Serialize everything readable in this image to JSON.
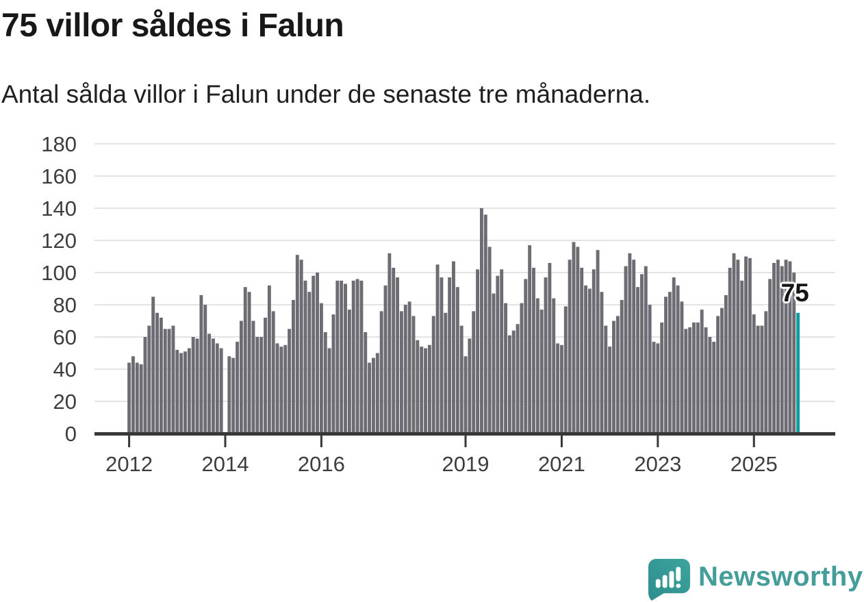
{
  "header": {
    "title": "75 villor såldes i Falun",
    "subtitle": "Antal sålda villor i Falun under de senaste tre månaderna."
  },
  "chart_data": {
    "type": "bar",
    "title": "75 villor såldes i Falun",
    "subtitle": "Antal sålda villor i Falun under de senaste tre månaderna.",
    "unit": "sålda villor (rullande 3 månader)",
    "start_month": "2012-01",
    "end_month": "2025-12",
    "missing_months": [
      "2014-01"
    ],
    "ylim": [
      0,
      180
    ],
    "grid": true,
    "gridline_color": "#e4e4e4",
    "axis_color": "#383838",
    "bar_color": "#6c6c72",
    "tick_label_color": "#3d3d3d",
    "y_ticks": [
      0,
      20,
      40,
      60,
      80,
      100,
      120,
      140,
      160,
      180
    ],
    "x_ticks": [
      {
        "label": "2012",
        "month_index": 0
      },
      {
        "label": "2014",
        "month_index": 24
      },
      {
        "label": "2016",
        "month_index": 48
      },
      {
        "label": "2019",
        "month_index": 84
      },
      {
        "label": "2021",
        "month_index": 108
      },
      {
        "label": "2023",
        "month_index": 132
      },
      {
        "label": "2025",
        "month_index": 156
      }
    ],
    "values": [
      44,
      48,
      44,
      43,
      60,
      67,
      85,
      75,
      72,
      65,
      65,
      67,
      52,
      50,
      51,
      53,
      60,
      59,
      86,
      80,
      62,
      59,
      56,
      53,
      null,
      48,
      47,
      57,
      70,
      91,
      88,
      70,
      60,
      60,
      72,
      92,
      76,
      56,
      54,
      55,
      65,
      83,
      111,
      108,
      95,
      88,
      98,
      100,
      81,
      63,
      53,
      74,
      95,
      95,
      93,
      77,
      95,
      96,
      95,
      63,
      44,
      47,
      50,
      76,
      92,
      112,
      103,
      97,
      76,
      80,
      82,
      73,
      58,
      54,
      53,
      55,
      73,
      105,
      97,
      75,
      97,
      107,
      91,
      67,
      48,
      59,
      76,
      102,
      140,
      136,
      116,
      87,
      98,
      102,
      81,
      61,
      64,
      68,
      81,
      96,
      117,
      103,
      84,
      77,
      97,
      106,
      84,
      56,
      55,
      79,
      108,
      119,
      116,
      103,
      92,
      90,
      102,
      114,
      88,
      67,
      54,
      70,
      73,
      83,
      104,
      112,
      108,
      91,
      99,
      104,
      80,
      57,
      56,
      69,
      85,
      88,
      97,
      92,
      82,
      65,
      66,
      69,
      69,
      77,
      66,
      60,
      57,
      73,
      78,
      86,
      103,
      112,
      108,
      95,
      110,
      109,
      74,
      67,
      67,
      76,
      96,
      106,
      108,
      104,
      108,
      107,
      100,
      75
    ],
    "highlight": {
      "index": 167,
      "label": "75",
      "value": 75,
      "color": "#109c9e"
    }
  },
  "footer": {
    "brand": "Newsworthy",
    "brand_color": "#449d99",
    "logo_color": "#379a96"
  }
}
